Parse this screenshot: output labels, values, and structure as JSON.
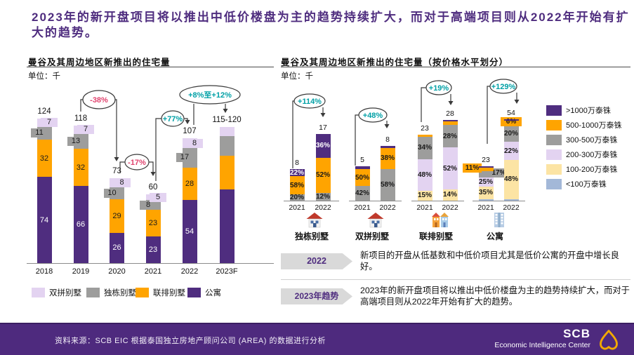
{
  "slide": {
    "title": "2023年的新开盘项目将以推出中低价楼盘为主的趋势持续扩大，而对于高端项目则从2022年开始有扩大的趋势。"
  },
  "chart_data": [
    {
      "type": "bar",
      "stacked": true,
      "title": "曼谷及其周边地区新推出的住宅量",
      "unit": "单位：千",
      "ylabel": "千 (thousand units)",
      "categories": [
        "2018",
        "2019",
        "2020",
        "2021",
        "2022",
        "2023F"
      ],
      "totals_display": [
        "124",
        "118",
        "73",
        "60",
        "107",
        "115-120"
      ],
      "segment_labels_visible": [
        true,
        true,
        true,
        true,
        true,
        false
      ],
      "series": [
        {
          "name": "公寓",
          "color": "#4F2D7F",
          "values": [
            74,
            66,
            26,
            23,
            54,
            63
          ]
        },
        {
          "name": "联排别墅",
          "color": "#FFA400",
          "values": [
            32,
            32,
            29,
            23,
            28,
            29
          ]
        },
        {
          "name": "独栋别墅",
          "color": "#9D9D9C",
          "values": [
            11,
            13,
            10,
            8,
            17,
            17
          ]
        },
        {
          "name": "双拼别墅",
          "color": "#E3D3F1",
          "values": [
            7,
            7,
            8,
            5,
            8,
            8
          ]
        }
      ],
      "legend": [
        {
          "label": "双拼别墅",
          "color": "#E3D3F1"
        },
        {
          "label": "独栋别墅",
          "color": "#9D9D9C"
        },
        {
          "label": "联排别墅",
          "color": "#FFA400"
        },
        {
          "label": "公寓",
          "color": "#4F2D7F"
        }
      ],
      "annotations": [
        {
          "label": "-38%",
          "color": "#E0436E"
        },
        {
          "label": "-17%",
          "color": "#E0436E"
        },
        {
          "label": "+77%",
          "color": "#00A0A6"
        },
        {
          "label": "+8%至+12%",
          "color": "#00A0A6"
        }
      ]
    },
    {
      "type": "bar",
      "stacked": true,
      "percent": true,
      "title": "曼谷及其周边地区新推出的住宅量（按价格水平划分）",
      "unit": "单位：千",
      "price_levels": [
        {
          "key": ">1000",
          "label": ">1000万泰铢",
          "color": "#4F2D7F"
        },
        {
          "key": "500-1000",
          "label": "500-1000万泰铢",
          "color": "#FFA400"
        },
        {
          "key": "300-500",
          "label": "300-500万泰铢",
          "color": "#9D9D9C"
        },
        {
          "key": "200-300",
          "label": "200-300万泰铢",
          "color": "#E3D3F1"
        },
        {
          "key": "100-200",
          "label": "100-200万泰铢",
          "color": "#FCE4A4"
        },
        {
          "key": "<100",
          "label": "<100万泰铢",
          "color": "#A3B8D8"
        }
      ],
      "groups": [
        {
          "name": "独栋别墅",
          "icon": "house",
          "bars": [
            {
              "year": "2021",
              "total": 8,
              "segments": [
                {
                  "key": "300-500",
                  "pct": 20,
                  "label": "20%"
                },
                {
                  "key": "500-1000",
                  "pct": 58,
                  "label": "58%"
                },
                {
                  "key": ">1000",
                  "pct": 22,
                  "label": "22%"
                }
              ]
            },
            {
              "year": "2022",
              "total": 17,
              "segments": [
                {
                  "key": "300-500",
                  "pct": 12,
                  "label": "12%"
                },
                {
                  "key": "500-1000",
                  "pct": 52,
                  "label": "52%"
                },
                {
                  "key": ">1000",
                  "pct": 36,
                  "label": "36%"
                }
              ]
            }
          ]
        },
        {
          "name": "双拼别墅",
          "icon": "house",
          "bars": [
            {
              "year": "2021",
              "total": 5,
              "segments": [
                {
                  "key": "300-500",
                  "pct": 42,
                  "label": "42%"
                },
                {
                  "key": "500-1000",
                  "pct": 50,
                  "label": "50%"
                },
                {
                  "key": ">1000",
                  "pct": 8,
                  "label": ""
                }
              ]
            },
            {
              "year": "2022",
              "total": 8,
              "segments": [
                {
                  "key": "300-500",
                  "pct": 58,
                  "label": "58%"
                },
                {
                  "key": "500-1000",
                  "pct": 38,
                  "label": "38%"
                },
                {
                  "key": ">1000",
                  "pct": 4,
                  "label": ""
                }
              ]
            }
          ]
        },
        {
          "name": "联排别墅",
          "icon": "rowhouse",
          "bars": [
            {
              "year": "2021",
              "total": 23,
              "segments": [
                {
                  "key": "100-200",
                  "pct": 15,
                  "label": "15%"
                },
                {
                  "key": "200-300",
                  "pct": 48,
                  "label": "48%"
                },
                {
                  "key": "300-500",
                  "pct": 34,
                  "label": "34%"
                },
                {
                  "key": "500-1000",
                  "pct": 3,
                  "label": ""
                }
              ]
            },
            {
              "year": "2022",
              "total": 28,
              "segments": [
                {
                  "key": "100-200",
                  "pct": 14,
                  "label": "14%"
                },
                {
                  "key": "200-300",
                  "pct": 52,
                  "label": "52%"
                },
                {
                  "key": "300-500",
                  "pct": 28,
                  "label": "28%"
                },
                {
                  "key": "500-1000",
                  "pct": 4,
                  "label": ""
                },
                {
                  "key": ">1000",
                  "pct": 2,
                  "label": ""
                }
              ]
            }
          ]
        },
        {
          "name": "公寓",
          "icon": "building",
          "bars": [
            {
              "year": "2021",
              "total": 23,
              "segments": [
                {
                  "key": "<100",
                  "pct": 4,
                  "label": ""
                },
                {
                  "key": "100-200",
                  "pct": 35,
                  "label": "35%"
                },
                {
                  "key": "200-300",
                  "pct": 25,
                  "label": "25%"
                },
                {
                  "key": "300-500",
                  "pct": 17,
                  "label": "17%",
                  "callout": "right"
                },
                {
                  "key": "500-1000",
                  "pct": 11,
                  "label": "11%",
                  "callout": "left"
                },
                {
                  "key": ">1000",
                  "pct": 4,
                  "label": ""
                }
              ]
            },
            {
              "year": "2022",
              "total": 54,
              "segments": [
                {
                  "key": "<100",
                  "pct": 2,
                  "label": ""
                },
                {
                  "key": "100-200",
                  "pct": 48,
                  "label": "48%"
                },
                {
                  "key": "200-300",
                  "pct": 22,
                  "label": "22%"
                },
                {
                  "key": "300-500",
                  "pct": 20,
                  "label": "20%"
                },
                {
                  "key": "500-1000",
                  "pct": 6,
                  "label": "6%",
                  "callout": "center"
                },
                {
                  "key": ">1000",
                  "pct": 2,
                  "label": ""
                }
              ]
            }
          ]
        }
      ],
      "annotations": [
        {
          "label": "+114%",
          "color": "#00A0A6"
        },
        {
          "label": "+48%",
          "color": "#00A0A6"
        },
        {
          "label": "+19%",
          "color": "#00A0A6"
        },
        {
          "label": "+129%",
          "color": "#00A0A6"
        }
      ]
    }
  ],
  "insights": [
    {
      "badge": "2022",
      "text": "新项目的开盘从低基数和中低价项目尤其是低价公寓的开盘中增长良好。"
    },
    {
      "badge": "2023年趋势",
      "text": "2023年的新开盘项目将以推出中低价楼盘为主的趋势持续扩大，而对于高端项目则从2022年开始有扩大的趋势。"
    }
  ],
  "footer": {
    "source": "资料来源：SCB EIC 根据泰国独立房地产顾问公司 (AREA) 的数据进行分析",
    "brand": "SCB",
    "brand_sub": "Economic Intelligence Center"
  }
}
